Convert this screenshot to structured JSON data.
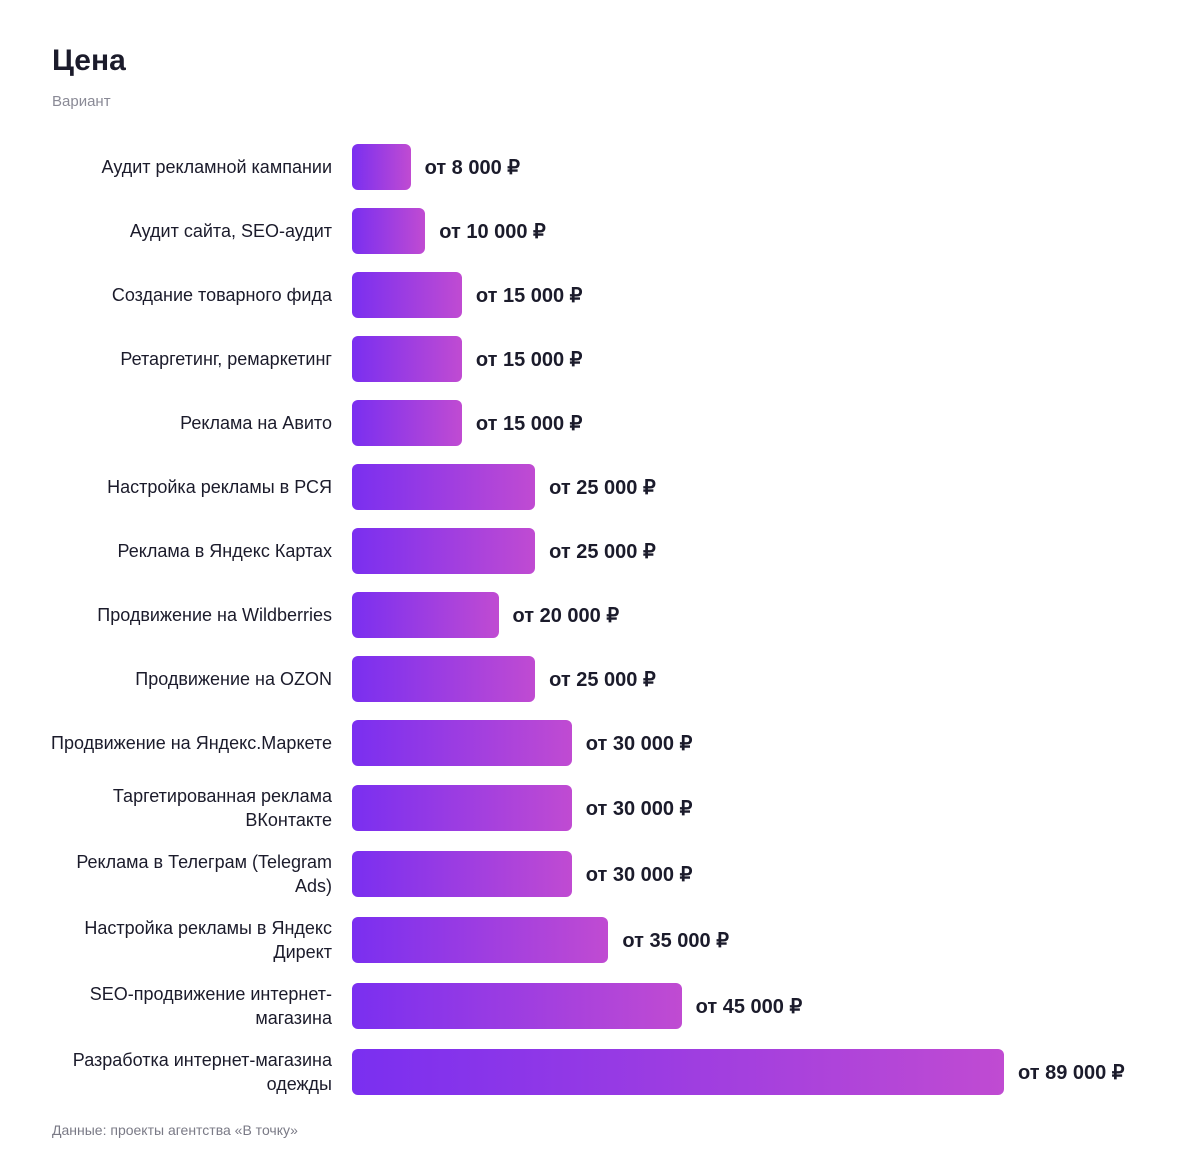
{
  "chart_data": {
    "type": "bar",
    "orientation": "horizontal",
    "title": "Цена",
    "subtitle": "Вариант",
    "categories": [
      "Аудит рекламной кампании",
      "Аудит сайта, SEO-аудит",
      "Создание товарного фида",
      "Ретаргетинг, ремаркетинг",
      "Реклама на Авито",
      "Настройка рекламы в РСЯ",
      "Реклама в Яндекс Картах",
      "Продвижение на Wildberries",
      "Продвижение на OZON",
      "Продвижение на Яндекс.Маркете",
      "Таргетированная реклама ВКонтакте",
      "Реклама в Телеграм (Telegram Ads)",
      "Настройка рекламы в Яндекс Директ",
      "SEO-продвижение интернет-магазина",
      "Разработка интернет-магазина одежды"
    ],
    "values": [
      8000,
      10000,
      15000,
      15000,
      15000,
      25000,
      25000,
      20000,
      25000,
      30000,
      30000,
      30000,
      35000,
      45000,
      89000
    ],
    "value_labels": [
      "от 8 000 ₽",
      "от 10 000 ₽",
      "от 15 000 ₽",
      "от 15 000 ₽",
      "от 15 000 ₽",
      "от 25 000 ₽",
      "от 25 000 ₽",
      "от 20 000 ₽",
      "от 25 000 ₽",
      "от 30 000 ₽",
      "от 30 000 ₽",
      "от 30 000 ₽",
      "от 35 000 ₽",
      "от 45 000 ₽",
      "от 89 000 ₽"
    ],
    "gradient": [
      "#7a2ff0",
      "#c04bd2"
    ],
    "source": "Данные: проекты агентства «В точку»"
  }
}
